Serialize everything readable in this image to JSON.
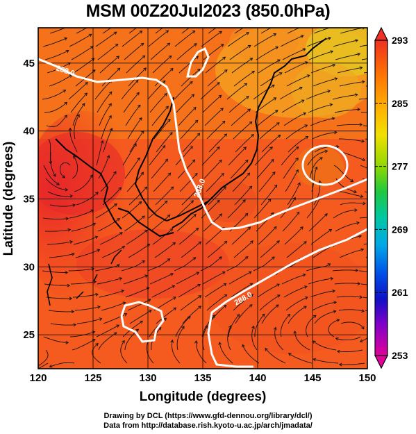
{
  "title": "MSM 00Z20Jul2023 (850.0hPa)",
  "map": {
    "xlabel": "Longitude (degrees)",
    "ylabel": "Latitude  (degrees)",
    "lon_range": [
      120,
      150
    ],
    "lat_range": [
      22.5,
      47.6
    ],
    "lon_ticks": [
      "120",
      "125",
      "130",
      "135",
      "140",
      "145",
      "150"
    ],
    "lat_ticks": [
      "25",
      "30",
      "35",
      "40",
      "45"
    ],
    "field": "temperature",
    "overlay": "streamlines",
    "contour_label": "288.0",
    "contour_label_2": "288.0",
    "contour_label_3": "288.0"
  },
  "colorbar": {
    "ticks": [
      "293",
      "285",
      "277",
      "269",
      "261",
      "253"
    ],
    "min": 253,
    "max": 293,
    "colors": [
      "#e6007e",
      "#c000c8",
      "#5a00d0",
      "#0030e0",
      "#0090f0",
      "#00d0c8",
      "#00d060",
      "#40d000",
      "#c8e000",
      "#ffd000",
      "#ffa000",
      "#ff6000",
      "#f03020"
    ]
  },
  "credits": {
    "line1": "Drawing by DCL (https://www.gfd-dennou.org/library/dcl/)",
    "line2": "Data from http://database.rish.kyoto-u.ac.jp/arch/jmadata/"
  }
}
